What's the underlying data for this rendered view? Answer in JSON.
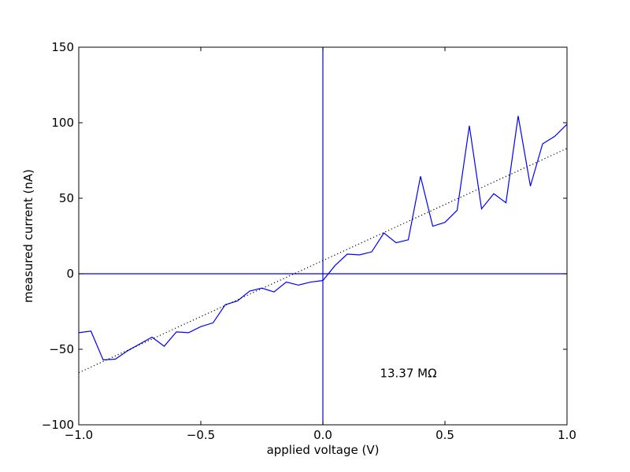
{
  "chart_data": {
    "type": "line",
    "xlabel": "applied voltage (V)",
    "ylabel": "measured current (nA)",
    "xlim": [
      -1.0,
      1.0
    ],
    "ylim": [
      -100,
      150
    ],
    "xticks": [
      -1.0,
      -0.5,
      0.0,
      0.5,
      1.0
    ],
    "xtick_labels": [
      "−1.0",
      "−0.5",
      "0.0",
      "0.5",
      "1.0"
    ],
    "yticks": [
      -100,
      -50,
      0,
      50,
      100,
      150
    ],
    "ytick_labels": [
      "−100",
      "−50",
      "0",
      "50",
      "100",
      "150"
    ],
    "grid": false,
    "series": [
      {
        "style": "solid",
        "color": "#0000ff",
        "x": [
          -1.0,
          -0.95,
          -0.9,
          -0.85,
          -0.8,
          -0.75,
          -0.7,
          -0.65,
          -0.6,
          -0.55,
          -0.5,
          -0.45,
          -0.4,
          -0.35,
          -0.3,
          -0.25,
          -0.2,
          -0.15,
          -0.1,
          -0.05,
          0.0,
          0.05,
          0.1,
          0.15,
          0.2,
          0.25,
          0.3,
          0.35,
          0.4,
          0.45,
          0.5,
          0.55,
          0.6,
          0.65,
          0.7,
          0.75,
          0.8,
          0.85,
          0.9,
          0.95,
          1.0
        ],
        "y": [
          -39,
          -38,
          -57,
          -56.5,
          -51,
          -46.5,
          -42,
          -48,
          -38.5,
          -39,
          -35,
          -32.5,
          -20.5,
          -18,
          -11.5,
          -9.5,
          -12,
          -5.5,
          -7.5,
          -5.5,
          -4.5,
          5.5,
          13,
          12.5,
          14.5,
          27,
          20.5,
          22.5,
          64.5,
          31.5,
          34,
          42,
          98,
          43,
          53,
          47,
          104.5,
          58,
          86,
          91,
          99
        ]
      },
      {
        "style": "dotted",
        "color": "#000000",
        "x": [
          -1.0,
          1.0
        ],
        "y": [
          -65.5,
          83
        ]
      }
    ],
    "reference_lines": [
      {
        "orientation": "horizontal",
        "value": 0,
        "color": "#0000ff"
      },
      {
        "orientation": "vertical",
        "value": 0,
        "color": "#0000ff"
      }
    ],
    "annotation": {
      "text": "13.37 MΩ",
      "x": 0.35,
      "y": -66
    }
  }
}
